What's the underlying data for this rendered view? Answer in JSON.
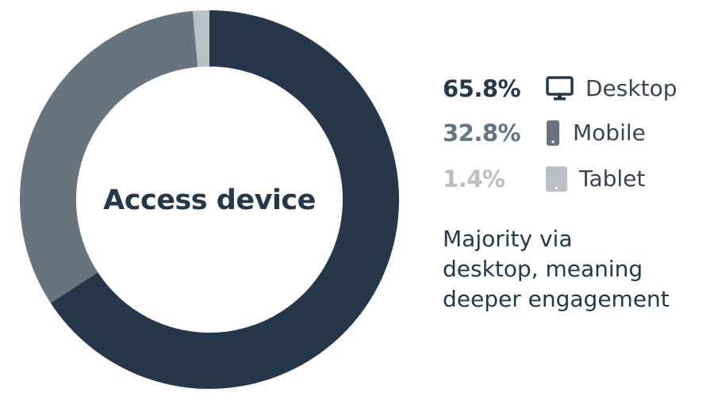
{
  "chart_data": {
    "type": "pie",
    "title": "Access device",
    "categories": [
      "Desktop",
      "Mobile",
      "Tablet"
    ],
    "values": [
      65.8,
      32.8,
      1.4
    ],
    "value_labels": [
      "65.8%",
      "32.8%",
      "1.4%"
    ],
    "colors": [
      "#26374a",
      "#677480",
      "#b9bfc5"
    ],
    "legend_position": "right"
  },
  "legend": [
    {
      "pct": "65.8%",
      "label": "Desktop",
      "icon": "desktop-monitor-icon",
      "color": "#26374a"
    },
    {
      "pct": "32.8%",
      "label": "Mobile",
      "icon": "mobile-phone-icon",
      "color": "#677480"
    },
    {
      "pct": "1.4%",
      "label": "Tablet",
      "icon": "tablet-icon",
      "color": "#b9bfc5"
    }
  ],
  "caption": {
    "line1": "Majority via",
    "line2": "desktop, meaning",
    "line3": "deeper engagement"
  }
}
